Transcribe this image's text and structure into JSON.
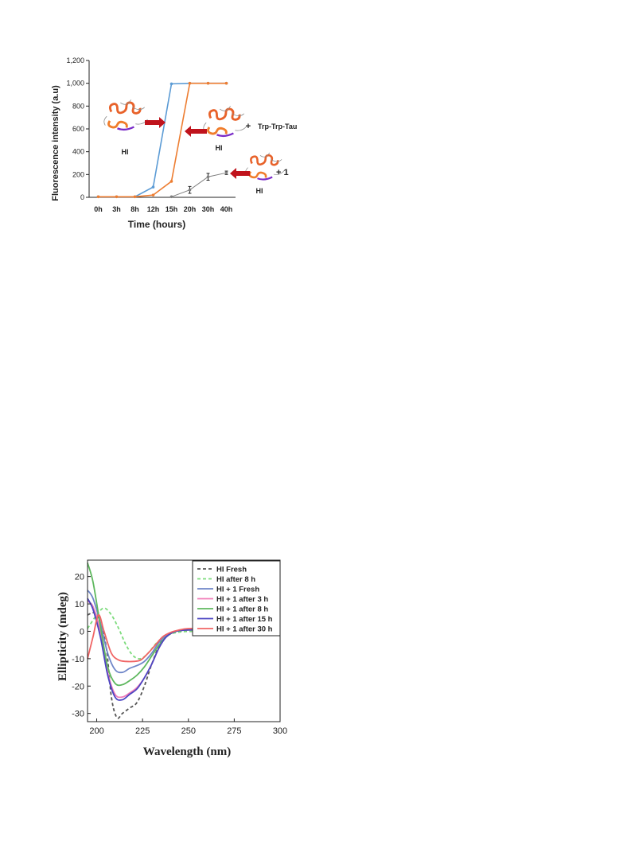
{
  "chart_data": [
    {
      "type": "line",
      "xlabel": "Time (hours)",
      "ylabel": "Fluorescence intensity (a.u)",
      "categories": [
        "0h",
        "3h",
        "8h",
        "12h",
        "15h",
        "20h",
        "30h",
        "40h"
      ],
      "ylim": [
        0,
        1200
      ],
      "yticks": [
        "0",
        "200",
        "400",
        "600",
        "800",
        "1,000",
        "1,200"
      ],
      "grid": false,
      "series": [
        {
          "color": "#5b9bd5",
          "x": [
            "0h",
            "3h",
            "8h",
            "12h",
            "15h",
            "20h",
            "30h",
            "40h"
          ],
          "values": [
            5,
            5,
            5,
            90,
            995,
            1000,
            1000,
            1000
          ]
        },
        {
          "color": "#ed7d31",
          "x": [
            "0h",
            "3h",
            "8h",
            "12h",
            "15h",
            "20h",
            "30h",
            "40h"
          ],
          "values": [
            5,
            5,
            5,
            20,
            140,
            1000,
            1000,
            1000
          ]
        },
        {
          "color": "#7f7f7f",
          "x": [
            "15h",
            "20h",
            "30h",
            "40h"
          ],
          "values": [
            5,
            65,
            180,
            215
          ],
          "errors": [
            0,
            30,
            30,
            15
          ]
        }
      ],
      "annotations": [
        {
          "text": "HI",
          "icon": "protein-structure-icon"
        },
        {
          "text": "HI",
          "icon": "protein-structure-icon"
        },
        {
          "text": "+",
          "icon": ""
        },
        {
          "text": "Trp-Trp-Tau",
          "icon": ""
        },
        {
          "text": "HI",
          "icon": "protein-structure-icon"
        },
        {
          "text": "+ 1",
          "icon": ""
        }
      ]
    },
    {
      "type": "line",
      "xlabel": "Wavelength (nm)",
      "ylabel": "Ellipticity (mdeg)",
      "xlim": [
        195,
        300
      ],
      "ylim": [
        -33,
        26
      ],
      "xticks": [
        "200",
        "225",
        "250",
        "275",
        "300"
      ],
      "yticks": [
        "20",
        "10",
        "0",
        "-10",
        "-20",
        "-30"
      ],
      "legend_position": "top-right",
      "grid": false,
      "series": [
        {
          "name": "HI Fresh",
          "color": "#555555",
          "dash": "dashed",
          "x": [
            195,
            200,
            205,
            208,
            211,
            214,
            218,
            222,
            226,
            230,
            235,
            240,
            245,
            250,
            260,
            270,
            280,
            300
          ],
          "values": [
            6,
            6,
            -5,
            -24,
            -31.5,
            -30,
            -28,
            -26,
            -20,
            -12,
            -4,
            -1,
            0,
            0,
            0,
            0,
            0,
            0
          ]
        },
        {
          "name": "HI after 8 h",
          "color": "#7cdb7c",
          "dash": "dashed",
          "x": [
            195,
            200,
            204,
            208,
            212,
            216,
            220,
            224,
            228,
            233,
            238,
            243,
            250,
            260,
            300
          ],
          "values": [
            1,
            6,
            8.5,
            6,
            1,
            -5,
            -9,
            -10,
            -8,
            -4,
            -1.5,
            -0.5,
            0,
            0,
            0
          ]
        },
        {
          "name": "HI + 1 Fresh",
          "color": "#6f86c8",
          "dash": "solid",
          "x": [
            195,
            198,
            202,
            206,
            210,
            214,
            218,
            222,
            226,
            230,
            234,
            238,
            243,
            250,
            260,
            300
          ],
          "values": [
            15,
            12,
            3,
            -8,
            -14,
            -15,
            -13.5,
            -12.5,
            -11,
            -8,
            -4,
            -1.5,
            0,
            0.5,
            0.5,
            0.5
          ]
        },
        {
          "name": "HI + 1 after 3 h",
          "color": "#f07cb8",
          "dash": "solid",
          "x": [
            195,
            198,
            202,
            206,
            210,
            214,
            218,
            222,
            226,
            230,
            234,
            238,
            243,
            250,
            260,
            300
          ],
          "values": [
            11,
            9,
            0,
            -15,
            -23,
            -24,
            -22.5,
            -20.5,
            -17,
            -12,
            -6,
            -2,
            0,
            0.5,
            0.5,
            0.5
          ]
        },
        {
          "name": "HI + 1 after 8 h",
          "color": "#5fb85f",
          "dash": "solid",
          "x": [
            195,
            198,
            202,
            206,
            210,
            214,
            218,
            222,
            226,
            230,
            234,
            238,
            243,
            250,
            260,
            300
          ],
          "values": [
            25,
            18,
            2,
            -13,
            -19,
            -19.5,
            -18,
            -16,
            -13,
            -9,
            -5,
            -2,
            0,
            0.5,
            0.5,
            0.5
          ]
        },
        {
          "name": "HI + 1 after 15 h",
          "color": "#4b45c2",
          "dash": "solid",
          "x": [
            195,
            198,
            202,
            206,
            210,
            214,
            218,
            222,
            226,
            230,
            234,
            238,
            243,
            250,
            260,
            300
          ],
          "values": [
            12,
            8,
            -2,
            -16,
            -24,
            -25,
            -23,
            -21,
            -17,
            -12,
            -6,
            -2,
            0,
            0.5,
            0.5,
            0.5
          ]
        },
        {
          "name": "HI + 1 after 30 h",
          "color": "#f06464",
          "dash": "solid",
          "x": [
            195,
            198,
            201,
            204,
            208,
            212,
            216,
            220,
            224,
            228,
            232,
            236,
            240,
            245,
            250,
            260,
            300
          ],
          "values": [
            -10,
            -2,
            6,
            0,
            -8,
            -10.5,
            -11,
            -11,
            -10.5,
            -8,
            -5,
            -2,
            -0.5,
            0.5,
            1,
            1,
            1
          ]
        }
      ]
    }
  ]
}
